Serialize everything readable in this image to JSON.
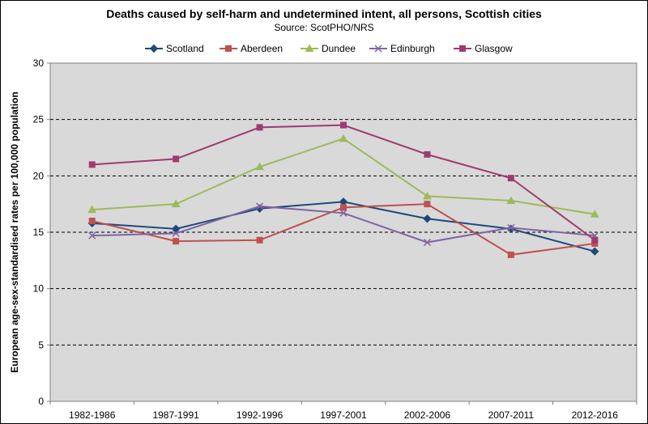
{
  "chart_data": {
    "type": "line",
    "title": "Deaths caused by self-harm and undetermined intent, all persons, Scottish cities",
    "subtitle": "Source: ScotPHO/NRS",
    "xlabel": "",
    "ylabel": "European age-sex-standardised rates per 100,000 population",
    "ylim": [
      0,
      30
    ],
    "yticks": [
      0,
      5,
      10,
      15,
      20,
      25,
      30
    ],
    "grid": true,
    "legend_position": "top",
    "categories": [
      "1982-1986",
      "1987-1991",
      "1992-1996",
      "1997-2001",
      "2002-2006",
      "2007-2011",
      "2012-2016"
    ],
    "series": [
      {
        "name": "Scotland",
        "color": "#1F497D",
        "marker": "diamond",
        "values": [
          15.8,
          15.3,
          17.1,
          17.7,
          16.2,
          15.3,
          13.3
        ]
      },
      {
        "name": "Aberdeen",
        "color": "#C0504D",
        "marker": "square",
        "values": [
          16.0,
          14.2,
          14.3,
          17.2,
          17.5,
          13.0,
          14.0
        ]
      },
      {
        "name": "Dundee",
        "color": "#9BBB59",
        "marker": "triangle",
        "values": [
          17.0,
          17.5,
          20.8,
          23.3,
          18.2,
          17.8,
          16.6
        ]
      },
      {
        "name": "Edinburgh",
        "color": "#8064A2",
        "marker": "x",
        "values": [
          14.7,
          14.9,
          17.3,
          16.7,
          14.1,
          15.4,
          14.7
        ]
      },
      {
        "name": "Glasgow",
        "color": "#9E3B6E",
        "marker": "square",
        "values": [
          21.0,
          21.5,
          24.3,
          24.5,
          21.9,
          19.8,
          14.3
        ]
      }
    ]
  }
}
